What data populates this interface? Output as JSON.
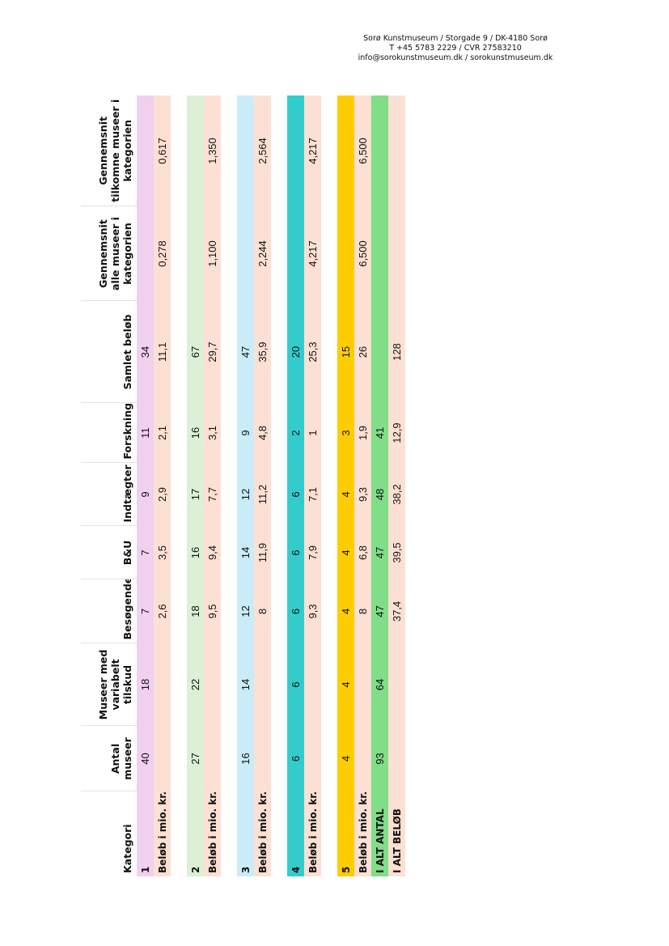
{
  "header": {
    "lines": [
      "Sorø Kunstmuseum / Storgade 9 / DK-4180 Sorø",
      "T +45 5783 2229  / CVR 27583210",
      "info@sorokunstmuseum.dk / sorokunstmuseum.dk"
    ]
  },
  "table": {
    "headers": [
      "Kategori",
      "Antal museer",
      "Museer med variabelt tilskud",
      "Besøgende",
      "B&U",
      "Indtægter",
      "Forskning",
      "Samlet beløb",
      "Gennemsnit alle museer i kategorien",
      "Gennemsnit tilkomne museer i kategorien"
    ],
    "rows": [
      [
        "1",
        "40",
        "18",
        "7",
        "7",
        "9",
        "11",
        "34",
        null,
        null
      ],
      [
        "Beløb i mio. kr.",
        null,
        null,
        "2,6",
        "3,5",
        "2,9",
        "2,1",
        "11,1",
        "0,278",
        "0,617"
      ],
      [
        "2",
        "27",
        "22",
        "18",
        "16",
        "17",
        "16",
        "67",
        null,
        null
      ],
      [
        "Beløb i mio. kr.",
        null,
        null,
        "9,5",
        "9,4",
        "7,7",
        "3,1",
        "29,7",
        "1,100",
        "1,350"
      ],
      [
        "3",
        "16",
        "14",
        "12",
        "14",
        "12",
        "9",
        "47",
        null,
        null
      ],
      [
        "Beløb i mio. kr.",
        null,
        null,
        "8",
        "11,9",
        "11,2",
        "4,8",
        "35,9",
        "2,244",
        "2,564"
      ],
      [
        "4",
        "6",
        "6",
        "6",
        "6",
        "6",
        "2",
        "20",
        null,
        null
      ],
      [
        "Beløb i mio. kr.",
        null,
        null,
        "9,3",
        "7,9",
        "7,1",
        "1",
        "25,3",
        "4,217",
        "4,217"
      ],
      [
        "5",
        "4",
        "4",
        "4",
        "4",
        "4",
        "3",
        "15",
        null,
        null
      ],
      [
        "Beløb i mio. kr.",
        null,
        null,
        "8",
        "6,8",
        "9,3",
        "1,9",
        "26",
        "6,500",
        "6,500"
      ],
      [
        "I ALT ANTAL",
        "93",
        "64",
        "47",
        "47",
        "48",
        "41",
        null,
        null,
        null
      ],
      [
        "I ALT BELØB",
        null,
        null,
        "37,4",
        "39,5",
        "38,2",
        "12,9",
        "128",
        null,
        null
      ]
    ]
  }
}
